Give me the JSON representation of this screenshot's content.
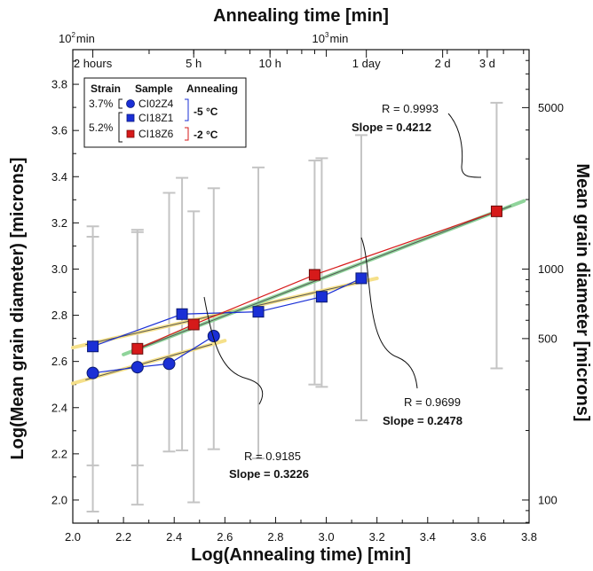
{
  "chart_data": {
    "type": "scatter",
    "title": "",
    "xlabel": "Log(Annealing time) [min]",
    "ylabel": "Log(Mean grain diameter) [microns]",
    "top_axis_label": "Annealing time [min]",
    "right_axis_label": "Mean grain diameter [microns]",
    "xlim": [
      2.0,
      3.8
    ],
    "ylim": [
      1.9,
      3.95
    ],
    "x_ticks": [
      "2.0",
      "2.2",
      "2.4",
      "2.6",
      "2.8",
      "3.0",
      "3.2",
      "3.4",
      "3.6",
      "3.8"
    ],
    "y_ticks": [
      "2.0",
      "2.2",
      "2.4",
      "2.6",
      "2.8",
      "3.0",
      "3.2",
      "3.4",
      "3.6",
      "3.8"
    ],
    "x_tick_values": [
      2.0,
      2.2,
      2.4,
      2.6,
      2.8,
      3.0,
      3.2,
      3.4,
      3.6,
      3.8
    ],
    "y_tick_values": [
      2.0,
      2.2,
      2.4,
      2.6,
      2.8,
      3.0,
      3.2,
      3.4,
      3.6,
      3.8
    ],
    "top_ticks": [
      {
        "label": "10",
        "sup": "2",
        "suffix": "min",
        "x": 2.0
      },
      {
        "label": "10",
        "sup": "3",
        "suffix": "min",
        "x": 3.0
      }
    ],
    "time_labels": [
      {
        "label": "2 hours",
        "x": 2.079
      },
      {
        "label": "5 h",
        "x": 2.477
      },
      {
        "label": "10 h",
        "x": 2.778
      },
      {
        "label": "1 day",
        "x": 3.158
      },
      {
        "label": "2 d",
        "x": 3.459
      },
      {
        "label": "3 d",
        "x": 3.635
      }
    ],
    "right_ticks": [
      {
        "label": "100",
        "value": 100
      },
      {
        "label": "500",
        "value": 500
      },
      {
        "label": "1000",
        "value": 1000
      },
      {
        "label": "5000",
        "value": 5000
      }
    ],
    "legend": {
      "headers": [
        "Strain",
        "Sample",
        "Annealing"
      ],
      "strain_1": "3.7%",
      "strain_2": "5.2%",
      "entries": [
        {
          "name": "CI02Z4",
          "marker": "circle",
          "color": "#1a2fd6"
        },
        {
          "name": "CI18Z1",
          "marker": "square",
          "color": "#1a2fd6"
        },
        {
          "name": "CI18Z6",
          "marker": "square",
          "color": "#d61a1a"
        }
      ],
      "temp_1": "-5 °C",
      "temp_2": "-2 °C",
      "temp_1_color": "#1a2fd6",
      "temp_2_color": "#d61a1a"
    },
    "series": [
      {
        "name": "CI02Z4",
        "marker": "circle",
        "color": "#1a2fd6",
        "x": [
          2.079,
          2.255,
          2.38,
          2.556
        ],
        "y": [
          2.55,
          2.575,
          2.59,
          2.71
        ],
        "err_low": [
          1.95,
          2.15,
          2.21,
          2.22
        ],
        "err_high": [
          3.14,
          3.17,
          3.33,
          3.35
        ],
        "fit_color": "#f5e08a",
        "fit": {
          "x0": 2.0,
          "y0": 2.505,
          "x1": 2.6,
          "y1": 2.69
        }
      },
      {
        "name": "CI18Z1",
        "marker": "square",
        "color": "#1a2fd6",
        "x": [
          2.079,
          2.431,
          2.732,
          2.982,
          3.138
        ],
        "y": [
          2.665,
          2.805,
          2.815,
          2.88,
          2.96
        ],
        "err_low": [
          2.15,
          2.215,
          2.18,
          2.49,
          2.345
        ],
        "err_high": [
          3.185,
          3.395,
          3.44,
          3.48,
          3.58
        ],
        "fit_color": "#f5e08a",
        "fit": {
          "x0": 2.0,
          "y0": 2.66,
          "x1": 3.2,
          "y1": 2.96
        }
      },
      {
        "name": "CI18Z6",
        "marker": "square",
        "color": "#d61a1a",
        "x": [
          2.255,
          2.477,
          2.954,
          3.672
        ],
        "y": [
          2.655,
          2.76,
          2.975,
          3.25
        ],
        "err_low": [
          1.98,
          1.99,
          2.5,
          2.57
        ],
        "err_high": [
          3.16,
          3.25,
          3.47,
          3.72
        ],
        "fit_color": "#8fd49a",
        "fit": {
          "x0": 2.2,
          "y0": 2.63,
          "x1": 3.78,
          "y1": 3.295
        }
      }
    ],
    "annotations": [
      {
        "r": "R = 0.9993",
        "slope": "Slope = 0.4212"
      },
      {
        "r": "R = 0.9699",
        "slope": "Slope = 0.2478"
      },
      {
        "r": "R = 0.9185",
        "slope": "Slope = 0.3226"
      }
    ],
    "grid": false,
    "legend_position": "top-left"
  }
}
